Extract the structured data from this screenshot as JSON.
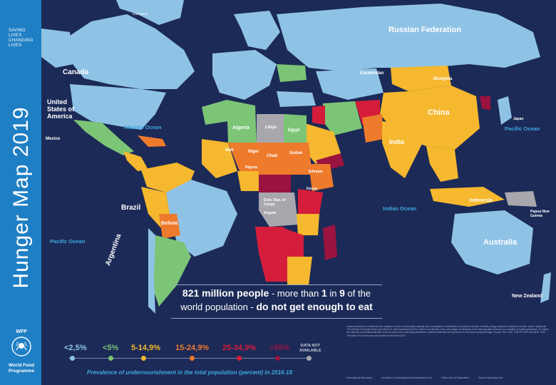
{
  "sidebar": {
    "tagline": [
      "SAVING",
      "LIVES",
      "CHANGING",
      "LIVES"
    ],
    "title": "Hunger Map 2019",
    "logo_label": "WFP",
    "org_name_line1": "World Food",
    "org_name_line2": "Programme"
  },
  "headline": {
    "part1": "821 million people",
    "part2": " - more than ",
    "num1": "1",
    "part3": " in ",
    "num2": "9",
    "part4": " of the",
    "line2a": "world population",
    "line2b": " - ",
    "line2c": "do not get enough to eat"
  },
  "legend": {
    "items": [
      {
        "label": "<2,5%",
        "color": "#8fc3e6"
      },
      {
        "label": "<5%",
        "color": "#7cc576"
      },
      {
        "label": "5-14,9%",
        "color": "#f5b82e"
      },
      {
        "label": "15-24,9%",
        "color": "#ee7a2c"
      },
      {
        "label": "25-34,9%",
        "color": "#d51d3b"
      },
      {
        "label": ">35%",
        "color": "#9b1340"
      }
    ],
    "na_line1": "DATA NOT",
    "na_line2": "AVAILABLE",
    "na_color": "#a7a7ad",
    "caption": "Prevalence of undernourishment in the total population (percent) in 2016-18"
  },
  "oceans": {
    "atlantic": "Atlantic Ocean",
    "pacific_left": "Pacific Ocean",
    "pacific_right": "Pacific Ocean",
    "indian": "Indian Ocean"
  },
  "countries": {
    "russia": "Russian Federation",
    "canada": "Canada",
    "usa": "United States of America",
    "brazil": "Brazil",
    "argentina": "Argentina",
    "bolivia": "Bolivia",
    "china": "China",
    "india": "India",
    "australia": "Australia",
    "indonesia": "Indonesia",
    "kazakhstan": "Kazakhstan",
    "mongolia": "Mongolia",
    "algeria": "Algeria",
    "libya": "Libya",
    "egypt": "Egypt",
    "chad": "Chad",
    "sudan": "Sudan",
    "niger": "Niger",
    "mali": "Mali",
    "ethiopia": "Ethiopia",
    "drc": "Dem. Rep. of Congo",
    "angola": "Angola",
    "nigeria": "Nigeria",
    "kenya": "Kenya",
    "mexico": "Mexico",
    "new_zealand": "New Zealand",
    "japan": "Japan",
    "png": "Papua New Guinea",
    "greenland": "Greenland"
  },
  "notes": "Undernourishment is defined as the condition in which an individual's habitual food consumption is insufficient to provide the amount of dietary energy required to maintain a normal, active, healthy life. The indicator is reported as the prevalence of undernourishment (PoU), which is an estimate of the percentage of individuals in the total population that are in a condition of undernourishment. To reduce the influence of potential estimation errors in some of the underlying parameters, national estimates are reported as a three-year moving average. Source: FAO, IFAD, UNICEF, WFP and WHO. 2019. The State of Food Security and Nutrition in the World 2019.",
  "boundaries": [
    "International Boundary",
    "Armistice or International Administrative Line",
    "Other Line of Separation",
    "Special boundary line"
  ]
}
